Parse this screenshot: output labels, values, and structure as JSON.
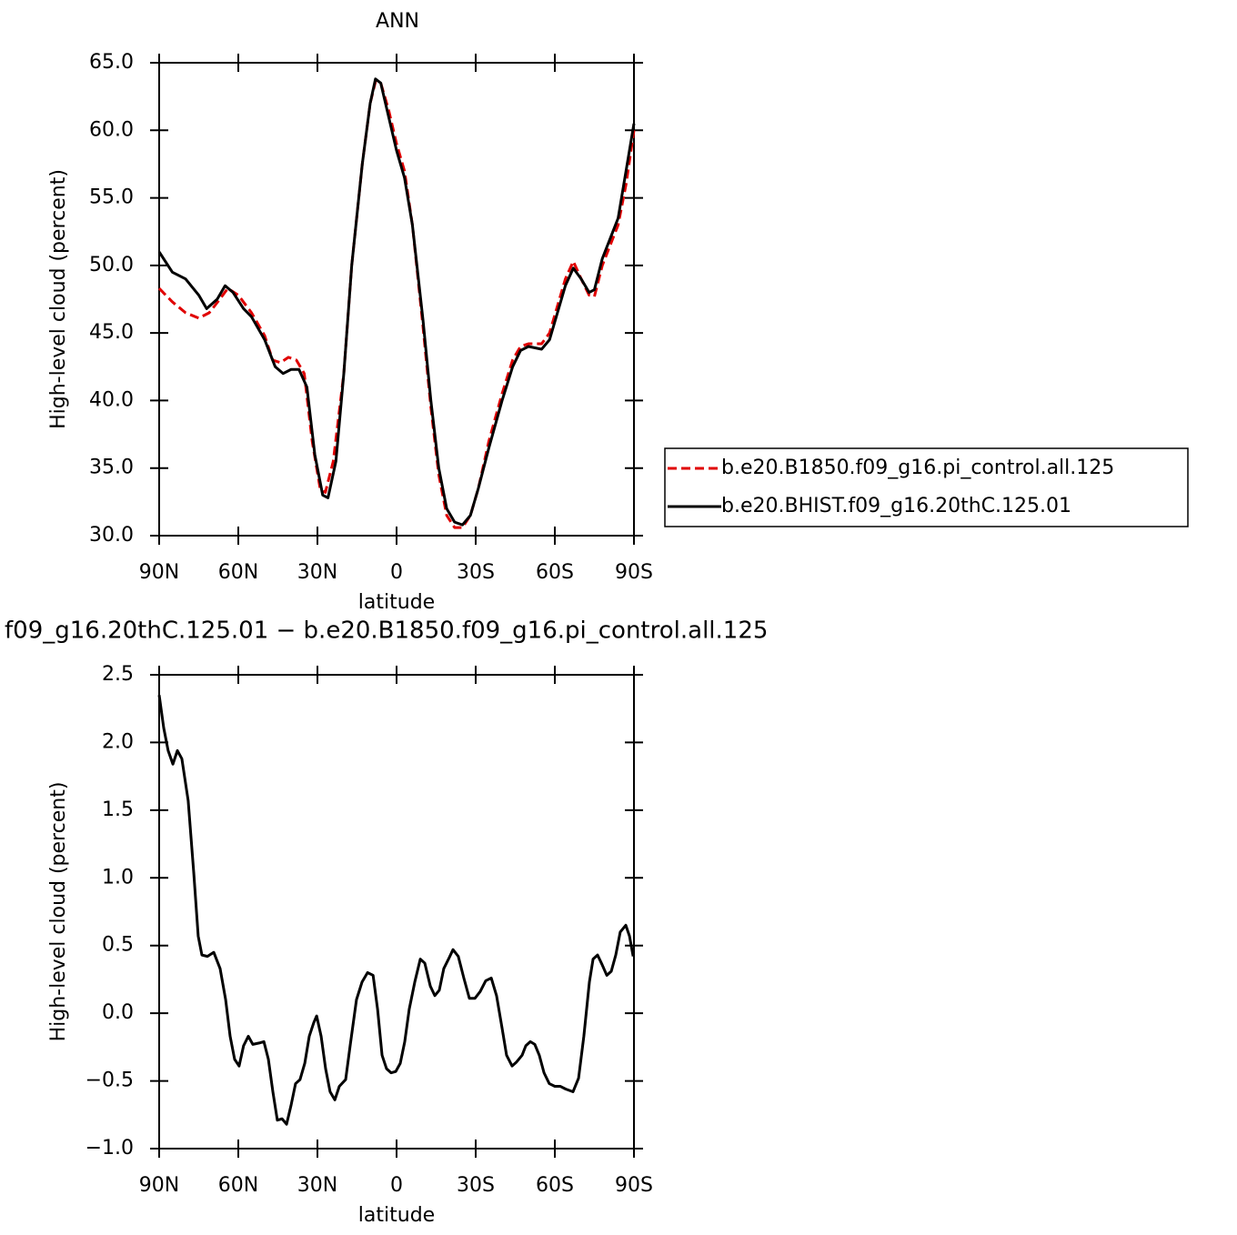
{
  "chart_data": [
    {
      "type": "line",
      "title": "ANN",
      "xlabel": "latitude",
      "ylabel": "High-level cloud (percent)",
      "xlim": [
        90,
        -90
      ],
      "xticks": [
        {
          "value": 90,
          "label": "90N"
        },
        {
          "value": 60,
          "label": "60N"
        },
        {
          "value": 30,
          "label": "30N"
        },
        0,
        {
          "value": -30,
          "label": "30S"
        },
        {
          "value": -60,
          "label": "60S"
        },
        {
          "value": -90,
          "label": "90S"
        }
      ],
      "ylim": [
        30,
        65
      ],
      "yticks": [
        {
          "value": 30,
          "label": "30.0"
        },
        {
          "value": 35,
          "label": "35.0"
        },
        {
          "value": 40,
          "label": "40.0"
        },
        {
          "value": 45,
          "label": "45.0"
        },
        {
          "value": 50,
          "label": "50.0"
        },
        {
          "value": 55,
          "label": "55.0"
        },
        {
          "value": 60,
          "label": "60.0"
        },
        {
          "value": 65,
          "label": "65.0"
        }
      ],
      "legend": "right",
      "series": [
        {
          "name": "b.e20.B1850.f09_g16.pi_control.all.125",
          "color": "#e00000",
          "line_style": "dashed",
          "x": [
            90,
            85,
            80,
            75,
            71,
            67,
            64,
            60,
            55,
            50,
            47,
            44,
            41,
            38,
            35,
            32,
            29,
            27,
            24,
            20,
            17,
            13,
            10,
            8,
            6,
            3,
            0,
            -3,
            -6,
            -10,
            -13,
            -16,
            -19,
            -22,
            -25,
            -28,
            -31,
            -35,
            -40,
            -44,
            -47,
            -50,
            -55,
            -58,
            -61,
            -64,
            -67,
            -70,
            -73,
            -75,
            -78,
            -81,
            -84,
            -87,
            -90
          ],
          "values": [
            48.3,
            47.3,
            46.5,
            46.1,
            46.5,
            47.5,
            48.3,
            47.8,
            46.5,
            44.8,
            43.0,
            42.8,
            43.2,
            43.0,
            42.0,
            37.0,
            33.5,
            33.2,
            35.5,
            42.0,
            50.0,
            57.5,
            62.0,
            63.6,
            63.5,
            61.5,
            59.0,
            57.0,
            53.0,
            45.5,
            39.5,
            34.5,
            31.5,
            30.6,
            30.6,
            31.5,
            33.5,
            37.0,
            40.5,
            43.0,
            44.0,
            44.2,
            44.2,
            45.0,
            47.0,
            49.0,
            50.3,
            49.0,
            47.8,
            47.7,
            50.0,
            51.5,
            53.0,
            56.0,
            60.0
          ]
        },
        {
          "name": "b.e20.BHIST.f09_g16.20thC.125.01",
          "color": "#000000",
          "line_style": "solid",
          "x": [
            90,
            85,
            80,
            75,
            72,
            68,
            65,
            62,
            58,
            55,
            50,
            46,
            43,
            40,
            37,
            34,
            31,
            28,
            26,
            23,
            20,
            17,
            13,
            10,
            8,
            6,
            3,
            0,
            -3,
            -6,
            -10,
            -13,
            -16,
            -19,
            -22,
            -25,
            -28,
            -31,
            -35,
            -40,
            -44,
            -47,
            -50,
            -55,
            -58,
            -61,
            -64,
            -67,
            -70,
            -73,
            -75,
            -78,
            -81,
            -84,
            -87,
            -90
          ],
          "values": [
            51.0,
            49.5,
            49.0,
            47.8,
            46.8,
            47.5,
            48.5,
            48.0,
            46.8,
            46.2,
            44.5,
            42.5,
            42.0,
            42.3,
            42.3,
            41.0,
            36.0,
            33.0,
            32.8,
            35.5,
            42.0,
            50.0,
            57.5,
            62.0,
            63.8,
            63.5,
            61.0,
            58.5,
            56.5,
            53.0,
            46.0,
            40.0,
            35.0,
            32.0,
            31.0,
            30.8,
            31.5,
            33.5,
            36.5,
            40.0,
            42.5,
            43.7,
            44.0,
            43.8,
            44.5,
            46.5,
            48.5,
            49.8,
            49.0,
            48.0,
            48.2,
            50.5,
            52.0,
            53.5,
            57.0,
            60.5
          ]
        }
      ]
    },
    {
      "type": "line",
      "title": "f09_g16.20thC.125.01 − b.e20.B1850.f09_g16.pi_control.all.125",
      "xlabel": "latitude",
      "ylabel": "High-level cloud (percent)",
      "xlim": [
        90,
        -90
      ],
      "xticks": [
        {
          "value": 90,
          "label": "90N"
        },
        {
          "value": 60,
          "label": "60N"
        },
        {
          "value": 30,
          "label": "30N"
        },
        0,
        {
          "value": -30,
          "label": "30S"
        },
        {
          "value": -60,
          "label": "60S"
        },
        {
          "value": -90,
          "label": "90S"
        }
      ],
      "ylim": [
        -1,
        2.5
      ],
      "yticks": [
        {
          "value": -1,
          "label": "−1.0"
        },
        {
          "value": -0.5,
          "label": "−0.5"
        },
        {
          "value": 0,
          "label": "0.0"
        },
        0.5,
        {
          "value": 1,
          "label": "1.0"
        },
        1.5,
        {
          "value": 2,
          "label": "2.0"
        },
        2.5
      ],
      "series": [
        {
          "color": "#000000",
          "line_style": "solid",
          "x": [
            90,
            88.3,
            86.6,
            84.8,
            83.1,
            81.4,
            79.0,
            76.9,
            75.2,
            73.8,
            71.7,
            69.3,
            66.9,
            64.8,
            63.1,
            61.4,
            59.7,
            58.0,
            56.2,
            54.5,
            52.1,
            50.3,
            48.6,
            46.9,
            45.2,
            43.4,
            41.7,
            40.0,
            38.3,
            36.6,
            34.8,
            33.1,
            31.4,
            30.3,
            28.6,
            26.9,
            25.2,
            23.4,
            21.7,
            19.3,
            17.6,
            15.2,
            13.1,
            11.0,
            8.9,
            7.2,
            5.5,
            3.8,
            2.1,
            0.3,
            -1.4,
            -3.1,
            -4.8,
            -6.9,
            -9.0,
            -10.7,
            -12.8,
            -14.5,
            -16.2,
            -17.9,
            -19.7,
            -21.4,
            -23.4,
            -25.5,
            -27.6,
            -29.7,
            -31.7,
            -33.8,
            -35.9,
            -37.9,
            -40.0,
            -41.7,
            -43.8,
            -45.5,
            -47.6,
            -49.0,
            -50.7,
            -52.4,
            -54.1,
            -55.9,
            -57.9,
            -60.0,
            -62.1,
            -64.1,
            -66.9,
            -69.0,
            -71.0,
            -73.1,
            -74.5,
            -76.2,
            -77.9,
            -79.7,
            -81.4,
            -83.1,
            -84.8,
            -86.9,
            -88.3,
            -89.7
          ],
          "values": [
            2.35,
            2.11,
            1.94,
            1.84,
            1.94,
            1.88,
            1.57,
            1.04,
            0.57,
            0.43,
            0.42,
            0.45,
            0.33,
            0.1,
            -0.17,
            -0.34,
            -0.39,
            -0.24,
            -0.17,
            -0.23,
            -0.22,
            -0.21,
            -0.34,
            -0.58,
            -0.79,
            -0.78,
            -0.82,
            -0.68,
            -0.52,
            -0.49,
            -0.37,
            -0.17,
            -0.07,
            -0.02,
            -0.17,
            -0.41,
            -0.58,
            -0.64,
            -0.54,
            -0.49,
            -0.24,
            0.1,
            0.23,
            0.3,
            0.28,
            0.03,
            -0.31,
            -0.41,
            -0.44,
            -0.43,
            -0.37,
            -0.21,
            0.03,
            0.23,
            0.4,
            0.37,
            0.2,
            0.13,
            0.17,
            0.33,
            0.4,
            0.47,
            0.42,
            0.26,
            0.11,
            0.11,
            0.16,
            0.24,
            0.26,
            0.13,
            -0.11,
            -0.31,
            -0.39,
            -0.36,
            -0.31,
            -0.24,
            -0.21,
            -0.23,
            -0.31,
            -0.44,
            -0.52,
            -0.54,
            -0.54,
            -0.56,
            -0.58,
            -0.48,
            -0.17,
            0.23,
            0.4,
            0.43,
            0.36,
            0.28,
            0.31,
            0.43,
            0.6,
            0.65,
            0.57,
            0.42
          ]
        }
      ]
    }
  ]
}
